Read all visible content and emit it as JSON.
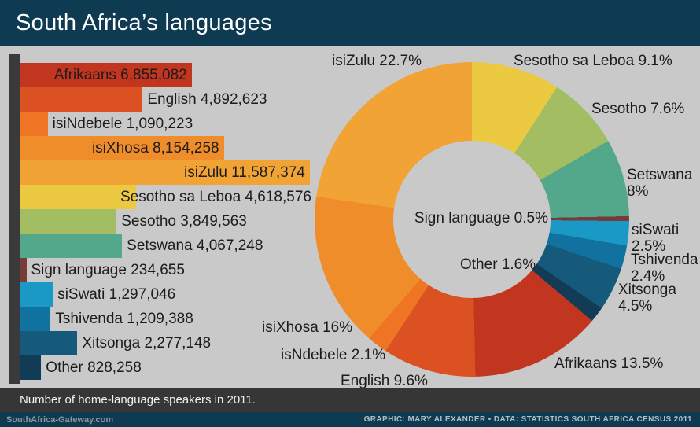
{
  "header": {
    "title": "South Africa’s languages",
    "bg": "#0e3a52"
  },
  "canvas": {
    "bg": "#c9c9c9",
    "axis_color": "#3a3a3c"
  },
  "footer": {
    "note": "Number of home-language speakers in 2011.",
    "note_bg": "#363636",
    "site": "SouthAfrica-Gateway.com",
    "credit": "GRAPHIC: MARY ALEXANDER • DATA: STATISTICS SOUTH AFRICA CENSUS 2011",
    "bar_bg": "#0e3a52"
  },
  "chart_data": [
    {
      "type": "bar",
      "orientation": "horizontal",
      "title": "Number of home-language speakers in 2011",
      "categories": [
        "Afrikaans",
        "English",
        "isiNdebele",
        "isiXhosa",
        "isiZulu",
        "Sesotho sa Leboa",
        "Sesotho",
        "Setswana",
        "Sign language",
        "siSwati",
        "Tshivenda",
        "Xitsonga",
        "Other"
      ],
      "values": [
        6855082,
        4892623,
        1090223,
        8154258,
        11587374,
        4618576,
        3849563,
        4067248,
        234655,
        1297046,
        1209388,
        2277148,
        828258
      ],
      "labels": [
        "Afrikaans 6,855,082",
        "English 4,892,623",
        "isiNdebele 1,090,223",
        "isiXhosa 8,154,258",
        "isiZulu 11,587,374",
        "Sesotho sa Leboa 4,618,576",
        "Sesotho 3,849,563",
        "Setswana 4,067,248",
        "Sign language 234,655",
        "siSwati 1,297,046",
        "Tshivenda 1,209,388",
        "Xitsonga 2,277,148",
        "Other 828,258"
      ],
      "colors": [
        "#c2361f",
        "#db5121",
        "#ef7423",
        "#f08d2b",
        "#f1a435",
        "#ebc941",
        "#a3bd62",
        "#53a78a",
        "#793b38",
        "#1b99c6",
        "#12729f",
        "#155a7b",
        "#123c55"
      ],
      "xlim": [
        0,
        11587374
      ],
      "grid": false
    },
    {
      "type": "pie",
      "donut": true,
      "start_angle_deg": 0,
      "direction": "clockwise",
      "unit": "%",
      "slices": [
        {
          "label": "Sesotho sa Leboa",
          "pct": 9.1,
          "pct_text": "9.1%",
          "color": "#ebc941"
        },
        {
          "label": "Sesotho",
          "pct": 7.6,
          "pct_text": "7.6%",
          "color": "#a3bd62"
        },
        {
          "label": "Setswana",
          "pct": 8,
          "pct_text": "8%",
          "color": "#53a78a"
        },
        {
          "label": "Sign language",
          "pct": 0.5,
          "pct_text": "0.5%",
          "color": "#793b38"
        },
        {
          "label": "siSwati",
          "pct": 2.5,
          "pct_text": "2.5%",
          "color": "#1b99c6"
        },
        {
          "label": "Tshivenda",
          "pct": 2.4,
          "pct_text": "2.4%",
          "color": "#12729f"
        },
        {
          "label": "Xitsonga",
          "pct": 4.5,
          "pct_text": "4.5%",
          "color": "#155a7b"
        },
        {
          "label": "Other",
          "pct": 1.6,
          "pct_text": "1.6%",
          "color": "#123c55"
        },
        {
          "label": "Afrikaans",
          "pct": 13.5,
          "pct_text": "13.5%",
          "color": "#c2361f"
        },
        {
          "label": "English",
          "pct": 9.6,
          "pct_text": "9.6%",
          "color": "#db5121"
        },
        {
          "label": "isNdebele",
          "pct": 2.1,
          "pct_text": "2.1%",
          "color": "#ef7423"
        },
        {
          "label": "isiXhosa",
          "pct": 16,
          "pct_text": "16%",
          "color": "#f08d2b"
        },
        {
          "label": "isiZulu",
          "pct": 22.7,
          "pct_text": "22.7%",
          "color": "#f1a435"
        }
      ]
    }
  ]
}
